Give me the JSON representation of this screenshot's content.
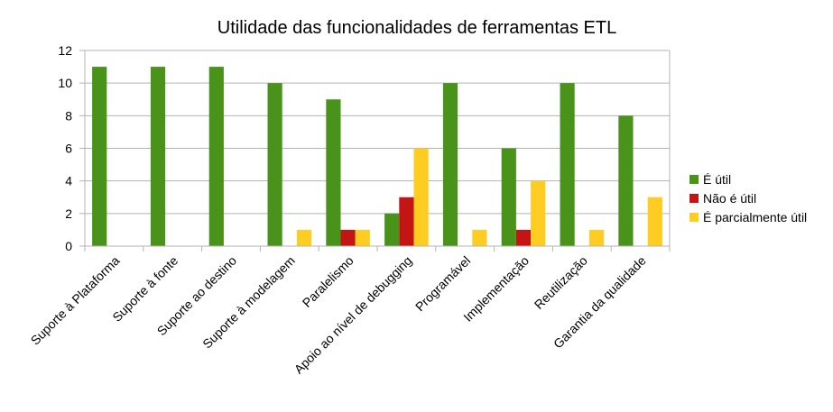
{
  "colors": {
    "series": [
      "#4a931a",
      "#c41414",
      "#ffcc22"
    ],
    "grid": "#b3b3b3",
    "axis": "#b3b3b3"
  },
  "chart_data": {
    "type": "bar",
    "title": "Utilidade das funcionalidades de ferramentas ETL",
    "xlabel": "",
    "ylabel": "",
    "ylim": [
      0,
      12
    ],
    "yticks": [
      0,
      2,
      4,
      6,
      8,
      10,
      12
    ],
    "grid": true,
    "legend_position": "right",
    "categories": [
      "Suporte à Plataforma",
      "Suporte à fonte",
      "Suporte ao destino",
      "Suporte à modelagem",
      "Paralelismo",
      "Apoio ao nível de debugging",
      "Programável",
      "Implementação",
      "Reutilização",
      "Garantia da qualidade"
    ],
    "series": [
      {
        "name": "É útil",
        "values": [
          11,
          11,
          11,
          10,
          9,
          2,
          10,
          6,
          10,
          8
        ]
      },
      {
        "name": "Não é útil",
        "values": [
          0,
          0,
          0,
          0,
          1,
          3,
          0,
          1,
          0,
          0
        ]
      },
      {
        "name": "É parcialmente útil",
        "values": [
          0,
          0,
          0,
          1,
          1,
          6,
          1,
          4,
          1,
          3
        ]
      }
    ]
  }
}
